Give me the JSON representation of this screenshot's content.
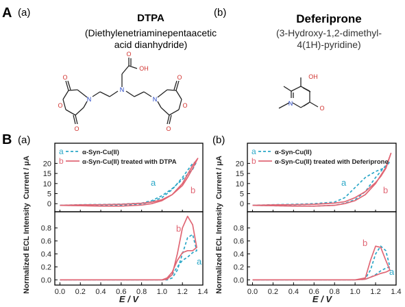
{
  "panel_A": {
    "letter": "A",
    "left": {
      "sub": "(a)",
      "title": "DTPA",
      "name_line1": "(Diethylenetriaminepentaacetic",
      "name_line2": "acid dianhydride)"
    },
    "right": {
      "sub": "(b)",
      "title": "Deferiprone",
      "name_line1": "(3-Hydroxy-1,2-dimethyl-",
      "name_line2": "4(1H)-pyridine)"
    },
    "atoms": {
      "O": "O",
      "N": "N",
      "OH": "OH"
    }
  },
  "panel_B": {
    "letter": "B",
    "sub_a": "(a)",
    "sub_b": "(b)",
    "xlabel": "E / V",
    "ylabel_top": "Current / μA",
    "ylabel_bottom": "Normalized ECL Intensity"
  },
  "colors": {
    "series_a": "#2aa7c7",
    "series_b": "#e06674",
    "label_a": "#2aa7c7",
    "label_b": "#e06674"
  },
  "chart_data": [
    {
      "type": "line",
      "panel": "B(a) top",
      "xlabel": "E / V",
      "ylabel": "Current / μA",
      "xlim": [
        -0.05,
        1.4
      ],
      "ylim": [
        -4,
        30
      ],
      "xticks": [
        0.0,
        0.2,
        0.4,
        0.6,
        0.8,
        1.0,
        1.2,
        1.4
      ],
      "yticks": [
        0,
        5,
        10,
        15,
        20
      ],
      "legend": [
        "α-Syn-Cu(II)",
        "α-Syn-Cu(II) treated with DTPA"
      ],
      "legend_marks": [
        "a",
        "b"
      ],
      "annotations": [
        {
          "text": "a",
          "series": 0
        },
        {
          "text": "b",
          "series": 1
        }
      ],
      "series": [
        {
          "name": "α-Syn-Cu(II)",
          "style": "dashed",
          "x": [
            0.0,
            0.2,
            0.4,
            0.6,
            0.8,
            0.9,
            1.0,
            1.1,
            1.2,
            1.3,
            1.34,
            1.3,
            1.2,
            1.1,
            1.0,
            0.9,
            0.8,
            0.6,
            0.4,
            0.2,
            0.0
          ],
          "y": [
            -0.8,
            -0.5,
            -0.4,
            -0.2,
            0.3,
            1.5,
            4,
            7.5,
            12,
            17,
            21,
            20,
            13,
            7,
            3,
            1,
            -0.2,
            -0.8,
            -1,
            -0.9,
            -0.8
          ]
        },
        {
          "name": "α-Syn-Cu(II) treated with DTPA",
          "style": "solid",
          "x": [
            0.0,
            0.2,
            0.4,
            0.6,
            0.8,
            0.9,
            1.0,
            1.1,
            1.2,
            1.25,
            1.3,
            1.35,
            1.3,
            1.2,
            1.1,
            1.0,
            0.9,
            0.8,
            0.6,
            0.4,
            0.2,
            0.0
          ],
          "y": [
            -0.8,
            -0.6,
            -0.5,
            -0.3,
            0.2,
            0.8,
            2,
            4.5,
            9,
            13,
            17.5,
            22.5,
            19,
            10,
            4.5,
            1.5,
            0,
            -0.7,
            -1.2,
            -1.2,
            -1,
            -0.8
          ]
        }
      ]
    },
    {
      "type": "line",
      "panel": "B(a) bottom",
      "xlabel": "E / V",
      "ylabel": "Normalized ECL Intensity",
      "xlim": [
        -0.05,
        1.4
      ],
      "ylim": [
        -0.08,
        1.05
      ],
      "xticks": [
        0.0,
        0.2,
        0.4,
        0.6,
        0.8,
        1.0,
        1.2,
        1.4
      ],
      "yticks": [
        0.0,
        0.2,
        0.4,
        0.6,
        0.8
      ],
      "annotations": [
        {
          "text": "b",
          "series": 1
        },
        {
          "text": "a",
          "series": 0
        }
      ],
      "series": [
        {
          "name": "α-Syn-Cu(II)",
          "style": "dashed",
          "x": [
            0.0,
            0.5,
            1.0,
            1.05,
            1.1,
            1.15,
            1.2,
            1.25,
            1.3,
            1.34,
            1.3,
            1.25,
            1.2,
            1.15,
            1.1,
            1.05,
            1.0,
            0.5,
            0.0
          ],
          "y": [
            0,
            0,
            0,
            0,
            0.03,
            0.15,
            0.4,
            0.65,
            0.7,
            0.45,
            0.42,
            0.35,
            0.3,
            0.2,
            0.08,
            0.02,
            0,
            0,
            0
          ]
        },
        {
          "name": "α-Syn-Cu(II) treated with DTPA",
          "style": "solid",
          "x": [
            0.0,
            0.5,
            1.0,
            1.05,
            1.1,
            1.15,
            1.2,
            1.25,
            1.3,
            1.34,
            1.3,
            1.25,
            1.2,
            1.15,
            1.1,
            1.05,
            1.0,
            0.5,
            0.0
          ],
          "y": [
            0,
            0,
            0,
            0.01,
            0.08,
            0.4,
            0.8,
            0.98,
            0.85,
            0.5,
            0.45,
            0.45,
            0.42,
            0.3,
            0.12,
            0.03,
            0,
            0,
            0
          ]
        }
      ]
    },
    {
      "type": "line",
      "panel": "B(b) top",
      "xlabel": "E / V",
      "ylabel": "Current / μA",
      "xlim": [
        -0.05,
        1.4
      ],
      "ylim": [
        -4,
        30
      ],
      "xticks": [
        0.0,
        0.2,
        0.4,
        0.6,
        0.8,
        1.0,
        1.2,
        1.4
      ],
      "yticks": [
        0,
        5,
        10,
        15,
        20
      ],
      "legend": [
        "α-Syn-Cu(II)",
        "α-Syn-Cu(II) treated with Deferiprone"
      ],
      "legend_marks": [
        "a",
        "b"
      ],
      "annotations": [
        {
          "text": "a",
          "series": 0
        },
        {
          "text": "b",
          "series": 1
        }
      ],
      "series": [
        {
          "name": "α-Syn-Cu(II)",
          "style": "dashed",
          "x": [
            0.0,
            0.2,
            0.4,
            0.6,
            0.8,
            0.9,
            1.0,
            1.1,
            1.2,
            1.3,
            1.34,
            1.3,
            1.2,
            1.1,
            1.0,
            0.9,
            0.8,
            0.6,
            0.4,
            0.2,
            0.0
          ],
          "y": [
            -0.8,
            -0.5,
            -0.3,
            0,
            0.8,
            3,
            8,
            13,
            16,
            18,
            21,
            19,
            13,
            6,
            2,
            0.2,
            -0.8,
            -1.2,
            -1.1,
            -1,
            -0.8
          ]
        },
        {
          "name": "α-Syn-Cu(II) treated with Deferiprone",
          "style": "solid",
          "x": [
            0.0,
            0.2,
            0.4,
            0.6,
            0.8,
            0.9,
            1.0,
            1.1,
            1.2,
            1.25,
            1.3,
            1.35,
            1.3,
            1.2,
            1.1,
            1.0,
            0.9,
            0.8,
            0.6,
            0.4,
            0.2,
            0.0
          ],
          "y": [
            -0.8,
            -0.6,
            -0.5,
            -0.3,
            0.3,
            1,
            3,
            6,
            10.5,
            13.5,
            17.5,
            25,
            18,
            10,
            4.5,
            1.5,
            0,
            -0.8,
            -1.2,
            -1.2,
            -1,
            -0.8
          ]
        }
      ]
    },
    {
      "type": "line",
      "panel": "B(b) bottom",
      "xlabel": "E / V",
      "ylabel": "Normalized ECL Intensity",
      "xlim": [
        -0.05,
        1.4
      ],
      "ylim": [
        -0.08,
        1.05
      ],
      "xticks": [
        0.0,
        0.2,
        0.4,
        0.6,
        0.8,
        1.0,
        1.2,
        1.4
      ],
      "yticks": [
        0.0,
        0.2,
        0.4,
        0.6,
        0.8
      ],
      "annotations": [
        {
          "text": "b",
          "series": 1
        },
        {
          "text": "a",
          "series": 0
        }
      ],
      "series": [
        {
          "name": "α-Syn-Cu(II)",
          "style": "dashed",
          "x": [
            0.0,
            0.5,
            1.0,
            1.1,
            1.15,
            1.2,
            1.25,
            1.3,
            1.34,
            1.3,
            1.25,
            1.2,
            1.15,
            1.1,
            1.0,
            0.5,
            0.0
          ],
          "y": [
            0,
            0,
            0,
            0.02,
            0.15,
            0.4,
            0.52,
            0.45,
            0.2,
            0.18,
            0.14,
            0.08,
            0.04,
            0.01,
            0,
            0,
            0
          ]
        },
        {
          "name": "α-Syn-Cu(II) treated with Deferiprone",
          "style": "solid",
          "x": [
            0.0,
            0.5,
            1.0,
            1.1,
            1.15,
            1.2,
            1.25,
            1.3,
            1.34,
            1.3,
            1.25,
            1.2,
            1.15,
            1.1,
            1.0,
            0.5,
            0.0
          ],
          "y": [
            0,
            0,
            0,
            0.03,
            0.3,
            0.52,
            0.5,
            0.3,
            0.15,
            0.12,
            0.1,
            0.07,
            0.04,
            0.01,
            0,
            0,
            0
          ]
        }
      ]
    }
  ]
}
